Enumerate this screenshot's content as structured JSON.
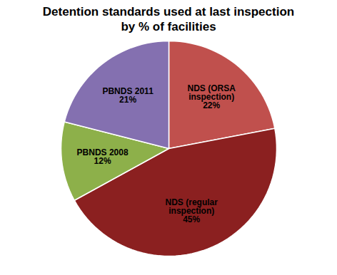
{
  "chart_data": {
    "type": "pie",
    "title": "Detention standards used at last inspection\nby % of facilities",
    "categories": [
      "NDS (ORSA\ninspection)",
      "NDS (regular\ninspection)",
      "PBNDS 2008",
      "PBNDS 2011"
    ],
    "values": [
      22,
      45,
      12,
      21
    ],
    "value_labels": [
      "22%",
      "45%",
      "12%",
      "21%"
    ],
    "data_labels": true,
    "colors": [
      "#c0504d",
      "#8b2020",
      "#8db04a",
      "#8470b0"
    ]
  }
}
